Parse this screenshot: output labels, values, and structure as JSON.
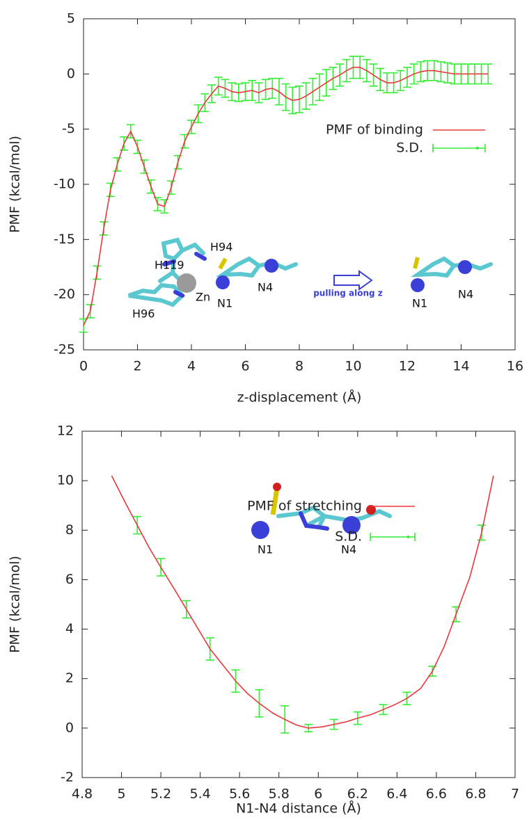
{
  "chart_data": [
    {
      "type": "line",
      "xlabel": "z-displacement (Å)",
      "ylabel": "PMF (kcal/mol)",
      "xlim": [
        0,
        16
      ],
      "ylim": [
        -25,
        5
      ],
      "xticks": [
        0,
        2,
        4,
        6,
        8,
        10,
        12,
        14,
        16
      ],
      "yticks": [
        -25,
        -20,
        -15,
        -10,
        -5,
        0,
        5
      ],
      "legend": "upper right",
      "annotations": [
        "H94",
        "H119",
        "Zn",
        "N1",
        "N4",
        "pulling along z",
        "H96",
        "N1",
        "N4"
      ],
      "series": [
        {
          "name": "PMF of binding",
          "color": "#e8383a",
          "x": [
            0,
            0.25,
            0.5,
            0.75,
            1,
            1.25,
            1.5,
            1.75,
            2,
            2.25,
            2.5,
            2.75,
            3,
            3.25,
            3.5,
            3.75,
            4,
            4.25,
            4.5,
            4.75,
            5,
            5.25,
            5.5,
            5.75,
            6,
            6.25,
            6.5,
            6.75,
            7,
            7.25,
            7.5,
            7.75,
            8,
            8.25,
            8.5,
            8.75,
            9,
            9.25,
            9.5,
            9.75,
            10,
            10.25,
            10.5,
            10.75,
            11,
            11.25,
            11.5,
            11.75,
            12,
            12.25,
            12.5,
            12.75,
            13,
            13.25,
            13.5,
            13.75,
            14,
            14.25,
            14.5,
            14.75,
            15
          ],
          "values": [
            -22.8,
            -21.5,
            -18,
            -14,
            -10.5,
            -8.2,
            -6.3,
            -5.2,
            -6.6,
            -8.4,
            -10.2,
            -11.8,
            -12,
            -10.3,
            -8,
            -6.1,
            -4.8,
            -3.6,
            -2.6,
            -1.8,
            -1.1,
            -1.3,
            -1.6,
            -1.7,
            -1.6,
            -1.5,
            -1.7,
            -1.4,
            -1.3,
            -1.6,
            -2.1,
            -2.4,
            -2.3,
            -2,
            -1.6,
            -1.2,
            -0.8,
            -0.4,
            -0.1,
            0.3,
            0.6,
            0.6,
            0.3,
            -0.1,
            -0.5,
            -0.8,
            -0.8,
            -0.6,
            -0.3,
            0,
            0.2,
            0.3,
            0.3,
            0.2,
            0.1,
            0,
            0,
            0,
            0,
            0,
            0
          ]
        },
        {
          "name": "S.D.",
          "color": "#33ee33",
          "x": [
            0,
            0.25,
            0.5,
            0.75,
            1,
            1.25,
            1.5,
            1.75,
            2,
            2.25,
            2.5,
            2.75,
            3,
            3.25,
            3.5,
            3.75,
            4,
            4.25,
            4.5,
            4.75,
            5,
            5.25,
            5.5,
            5.75,
            6,
            6.25,
            6.5,
            6.75,
            7,
            7.25,
            7.5,
            7.75,
            8,
            8.25,
            8.5,
            8.75,
            9,
            9.25,
            9.5,
            9.75,
            10,
            10.25,
            10.5,
            10.75,
            11,
            11.25,
            11.5,
            11.75,
            12,
            12.25,
            12.5,
            12.75,
            13,
            13.25,
            13.5,
            13.75,
            14,
            14.25,
            14.5,
            14.75,
            15
          ],
          "values": [
            -22.8,
            -21.5,
            -18,
            -14,
            -10.5,
            -8.2,
            -6.3,
            -5.2,
            -6.6,
            -8.4,
            -10.2,
            -11.8,
            -12,
            -10.3,
            -8,
            -6.1,
            -4.8,
            -3.6,
            -2.6,
            -1.8,
            -1.1,
            -1.3,
            -1.6,
            -1.7,
            -1.6,
            -1.5,
            -1.7,
            -1.4,
            -1.3,
            -1.6,
            -2.1,
            -2.4,
            -2.3,
            -2,
            -1.6,
            -1.2,
            -0.8,
            -0.4,
            -0.1,
            0.3,
            0.6,
            0.6,
            0.3,
            -0.1,
            -0.5,
            -0.8,
            -0.8,
            -0.6,
            -0.3,
            0,
            0.2,
            0.3,
            0.3,
            0.2,
            0.1,
            0,
            0,
            0,
            0,
            0,
            0
          ],
          "errors": [
            0.6,
            0.6,
            0.6,
            0.6,
            0.6,
            0.6,
            0.6,
            0.6,
            0.6,
            0.6,
            0.6,
            0.6,
            0.6,
            0.6,
            0.6,
            0.6,
            0.6,
            0.8,
            0.8,
            0.8,
            0.8,
            0.8,
            0.8,
            0.8,
            0.8,
            0.9,
            0.9,
            0.9,
            0.9,
            1.2,
            1.2,
            1.2,
            1.2,
            1.2,
            1.2,
            1.2,
            1.2,
            1,
            1,
            1,
            1,
            1,
            1,
            1,
            1,
            0.9,
            0.9,
            0.9,
            0.9,
            0.9,
            0.9,
            0.9,
            0.9,
            0.9,
            0.9,
            0.9,
            0.9,
            0.9,
            0.9,
            0.9,
            0.9
          ]
        }
      ]
    },
    {
      "type": "line",
      "xlabel": "N1-N4 distance (Å)",
      "ylabel": "PMF (kcal/mol)",
      "xlim": [
        4.8,
        7
      ],
      "ylim": [
        -2,
        12
      ],
      "xticks": [
        4.8,
        5,
        5.2,
        5.4,
        5.6,
        5.8,
        6,
        6.2,
        6.4,
        6.6,
        6.8,
        7
      ],
      "yticks": [
        -2,
        0,
        2,
        4,
        6,
        8,
        10,
        12
      ],
      "legend": "upper center",
      "annotations": [
        "N1",
        "N4"
      ],
      "series": [
        {
          "name": "PMF of stretching",
          "color": "#e8383a",
          "x": [
            4.95,
            5.02,
            5.08,
            5.14,
            5.2,
            5.27,
            5.33,
            5.39,
            5.45,
            5.52,
            5.58,
            5.64,
            5.7,
            5.77,
            5.83,
            5.89,
            5.95,
            6.02,
            6.08,
            6.14,
            6.2,
            6.27,
            6.33,
            6.39,
            6.45,
            6.52,
            6.58,
            6.64,
            6.7,
            6.77,
            6.83,
            6.89
          ],
          "values": [
            10.2,
            9.1,
            8.2,
            7.3,
            6.5,
            5.6,
            4.8,
            4,
            3.2,
            2.5,
            1.9,
            1.4,
            1,
            0.6,
            0.35,
            0.12,
            0,
            0.05,
            0.15,
            0.25,
            0.4,
            0.55,
            0.75,
            0.95,
            1.2,
            1.6,
            2.3,
            3.3,
            4.6,
            6.1,
            7.9,
            10.2
          ]
        },
        {
          "name": "S.D.",
          "color": "#33ee33",
          "x": [
            5.08,
            5.2,
            5.33,
            5.45,
            5.58,
            5.7,
            5.83,
            5.95,
            6.08,
            6.2,
            6.33,
            6.45,
            6.58,
            6.7,
            6.83
          ],
          "values": [
            8.2,
            6.5,
            4.8,
            3.2,
            1.9,
            1,
            0.35,
            0,
            0.15,
            0.4,
            0.75,
            1.2,
            2.3,
            4.6,
            7.9
          ],
          "errors": [
            0.35,
            0.35,
            0.35,
            0.45,
            0.45,
            0.55,
            0.55,
            0.15,
            0.2,
            0.25,
            0.2,
            0.25,
            0.2,
            0.3,
            0.3
          ]
        }
      ]
    }
  ]
}
